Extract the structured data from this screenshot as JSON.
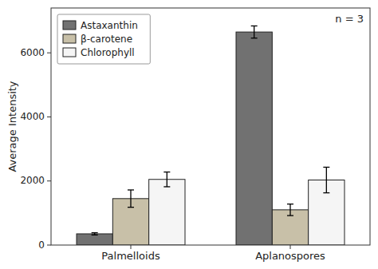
{
  "chart_data": {
    "type": "bar",
    "categories": [
      "Palmelloids",
      "Aplanospores"
    ],
    "series": [
      {
        "name": "Astaxanthin",
        "color": "#717171",
        "values": [
          350,
          6650
        ],
        "errors": [
          35,
          190
        ]
      },
      {
        "name": "β-carotene",
        "color": "#c8c0a8",
        "values": [
          1450,
          1100
        ],
        "errors": [
          270,
          180
        ]
      },
      {
        "name": "Chlorophyll",
        "color": "#f5f5f5",
        "values": [
          2050,
          2030
        ],
        "errors": [
          230,
          400
        ]
      }
    ],
    "ylabel": "Average Intensity",
    "ylim": [
      0,
      7400
    ],
    "yticks": [
      0,
      2000,
      4000,
      6000
    ],
    "annotation": "n = 3",
    "legend": "upper left"
  }
}
